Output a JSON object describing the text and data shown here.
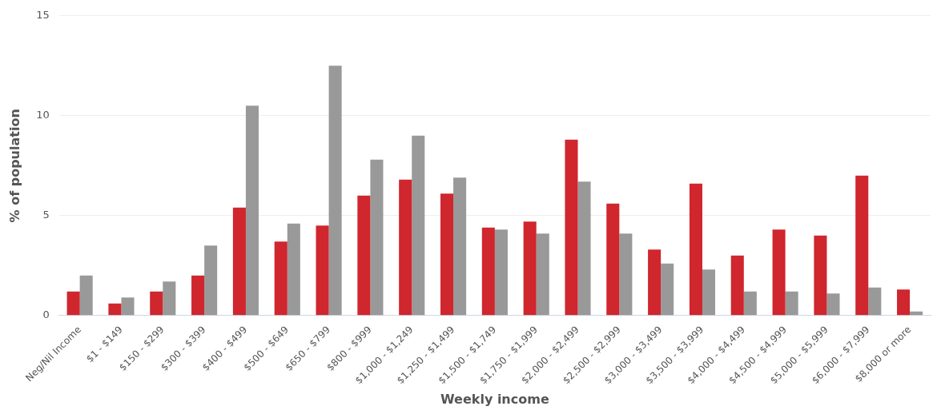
{
  "chart_data": {
    "type": "bar",
    "xlabel": "Weekly income",
    "ylabel": "% of population",
    "categories": [
      "Neg/Nil Income",
      "$1 - $149",
      "$150 - $299",
      "$300 - $399",
      "$400 - $499",
      "$500 - $649",
      "$650 - $799",
      "$800 - $999",
      "$1,000 - $1,249",
      "$1,250 - $1,499",
      "$1,500 - $1,749",
      "$1,750 - $1,999",
      "$2,000 - $2,499",
      "$2,500 - $2,999",
      "$3,000 - $3,499",
      "$3,500 - $3,999",
      "$4,000 - $4,499",
      "$4,500 - $4,999",
      "$5,000 - $5,999",
      "$6,000 - $7,999",
      "$8,000 or more"
    ],
    "series": [
      {
        "color": "#d0262e",
        "values": [
          1.2,
          0.6,
          1.2,
          2.0,
          5.4,
          3.7,
          4.5,
          6.0,
          6.8,
          6.1,
          4.4,
          4.7,
          8.8,
          5.6,
          3.3,
          6.6,
          3.0,
          4.3,
          4.0,
          7.0,
          1.3
        ]
      },
      {
        "color": "#999999",
        "values": [
          2.0,
          0.9,
          1.7,
          3.5,
          10.5,
          4.6,
          12.5,
          7.8,
          9.0,
          6.9,
          4.3,
          4.1,
          6.7,
          4.1,
          2.6,
          2.3,
          1.2,
          1.2,
          1.1,
          1.4,
          0.2
        ]
      }
    ],
    "ylim": [
      0,
      15
    ],
    "yticks": [
      0,
      5,
      10,
      15
    ],
    "grid": "y",
    "legend": false
  }
}
